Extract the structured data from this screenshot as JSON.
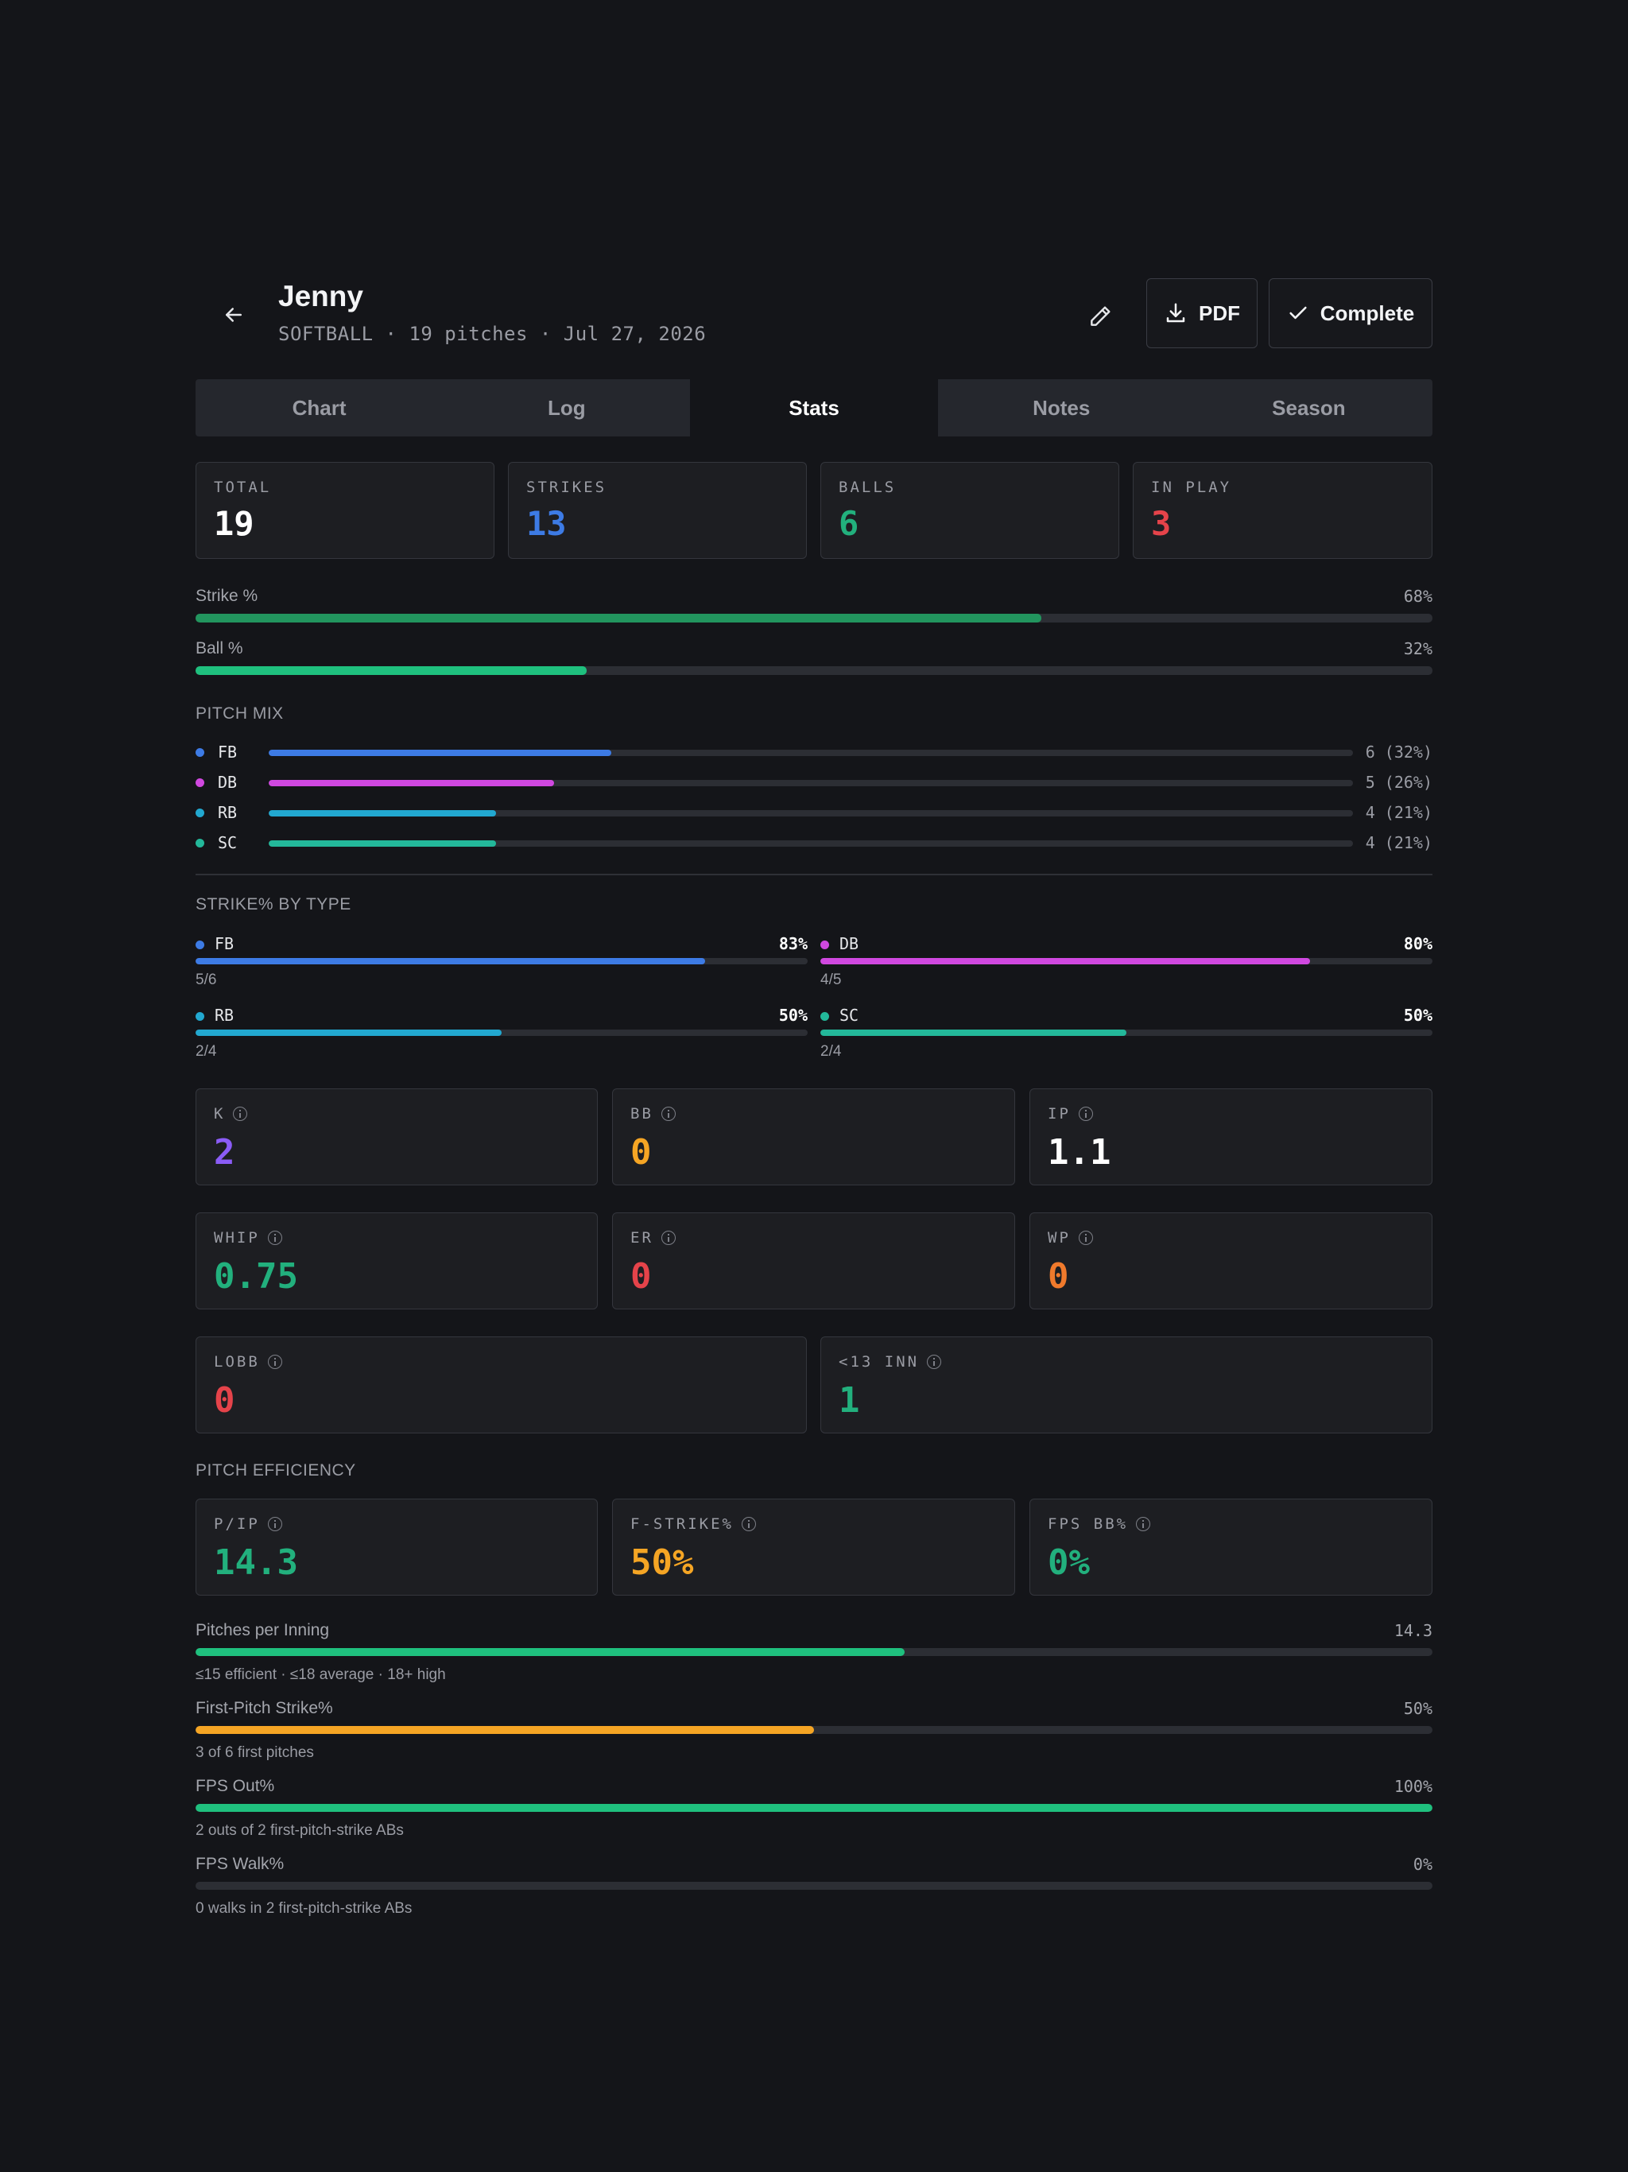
{
  "header": {
    "title": "Jenny",
    "subtitle": "SOFTBALL · 19 pitches · Jul 27, 2026",
    "pdf_label": "PDF",
    "complete_label": "Complete"
  },
  "tabs": [
    "Chart",
    "Log",
    "Stats",
    "Notes",
    "Season"
  ],
  "active_tab": "Stats",
  "summary": [
    {
      "label": "TOTAL",
      "value": "19",
      "color": "#ffffff"
    },
    {
      "label": "STRIKES",
      "value": "13",
      "color": "#3d7be5"
    },
    {
      "label": "BALLS",
      "value": "6",
      "color": "#22b07d"
    },
    {
      "label": "IN PLAY",
      "value": "3",
      "color": "#e5434a"
    }
  ],
  "rates": [
    {
      "label": "Strike %",
      "value": "68%",
      "fraction": 0.684,
      "color": "#22955e"
    },
    {
      "label": "Ball %",
      "value": "32%",
      "fraction": 0.316,
      "color": "#1fc07e"
    }
  ],
  "pitch_mix": {
    "title": "PITCH MIX",
    "items": [
      {
        "name": "FB",
        "count": "6 (32%)",
        "fraction": 0.316,
        "color": "#3d7be5"
      },
      {
        "name": "DB",
        "count": "5 (26%)",
        "fraction": 0.263,
        "color": "#d048e0"
      },
      {
        "name": "RB",
        "count": "4 (21%)",
        "fraction": 0.21,
        "color": "#22a8d0"
      },
      {
        "name": "SC",
        "count": "4 (21%)",
        "fraction": 0.21,
        "color": "#23b89a"
      }
    ]
  },
  "strike_by_type": {
    "title": "STRIKE% BY TYPE",
    "items": [
      {
        "name": "FB",
        "pct": "83%",
        "fraction": 0.833,
        "frac_text": "5/6",
        "color": "#3d7be5"
      },
      {
        "name": "DB",
        "pct": "80%",
        "fraction": 0.8,
        "frac_text": "4/5",
        "color": "#d048e0"
      },
      {
        "name": "RB",
        "pct": "50%",
        "fraction": 0.5,
        "frac_text": "2/4",
        "color": "#22a8d0"
      },
      {
        "name": "SC",
        "pct": "50%",
        "fraction": 0.5,
        "frac_text": "2/4",
        "color": "#23b89a"
      }
    ]
  },
  "advanced": [
    {
      "label": "K",
      "value": "2",
      "color": "#8b5cf6"
    },
    {
      "label": "BB",
      "value": "0",
      "color": "#f5a524"
    },
    {
      "label": "IP",
      "value": "1.1",
      "color": "#ffffff"
    },
    {
      "label": "WHIP",
      "value": "0.75",
      "color": "#22b07d"
    },
    {
      "label": "ER",
      "value": "0",
      "color": "#e5434a"
    },
    {
      "label": "WP",
      "value": "0",
      "color": "#f07a2c"
    },
    {
      "label": "LOBB",
      "value": "0",
      "color": "#e5434a"
    },
    {
      "label": "<13 INN",
      "value": "1",
      "color": "#22b07d"
    }
  ],
  "efficiency": {
    "title": "PITCH EFFICIENCY",
    "cards": [
      {
        "label": "P/IP",
        "value": "14.3",
        "color": "#22b07d"
      },
      {
        "label": "F-STRIKE%",
        "value": "50%",
        "color": "#f5a524"
      },
      {
        "label": "FPS BB%",
        "value": "0%",
        "color": "#22b07d"
      }
    ],
    "bars": [
      {
        "label": "Pitches per Inning",
        "value": "14.3",
        "fraction": 0.573,
        "color": "#1fc07e",
        "note": "≤15 efficient · ≤18 average · 18+ high"
      },
      {
        "label": "First-Pitch Strike%",
        "value": "50%",
        "fraction": 0.5,
        "color": "#f5a524",
        "note": "3 of 6 first pitches"
      },
      {
        "label": "FPS Out%",
        "value": "100%",
        "fraction": 1.0,
        "color": "#1fc07e",
        "note": "2 outs of 2 first-pitch-strike ABs"
      },
      {
        "label": "FPS Walk%",
        "value": "0%",
        "fraction": 0.0,
        "color": "#1fc07e",
        "note": "0 walks in 2 first-pitch-strike ABs"
      }
    ]
  }
}
